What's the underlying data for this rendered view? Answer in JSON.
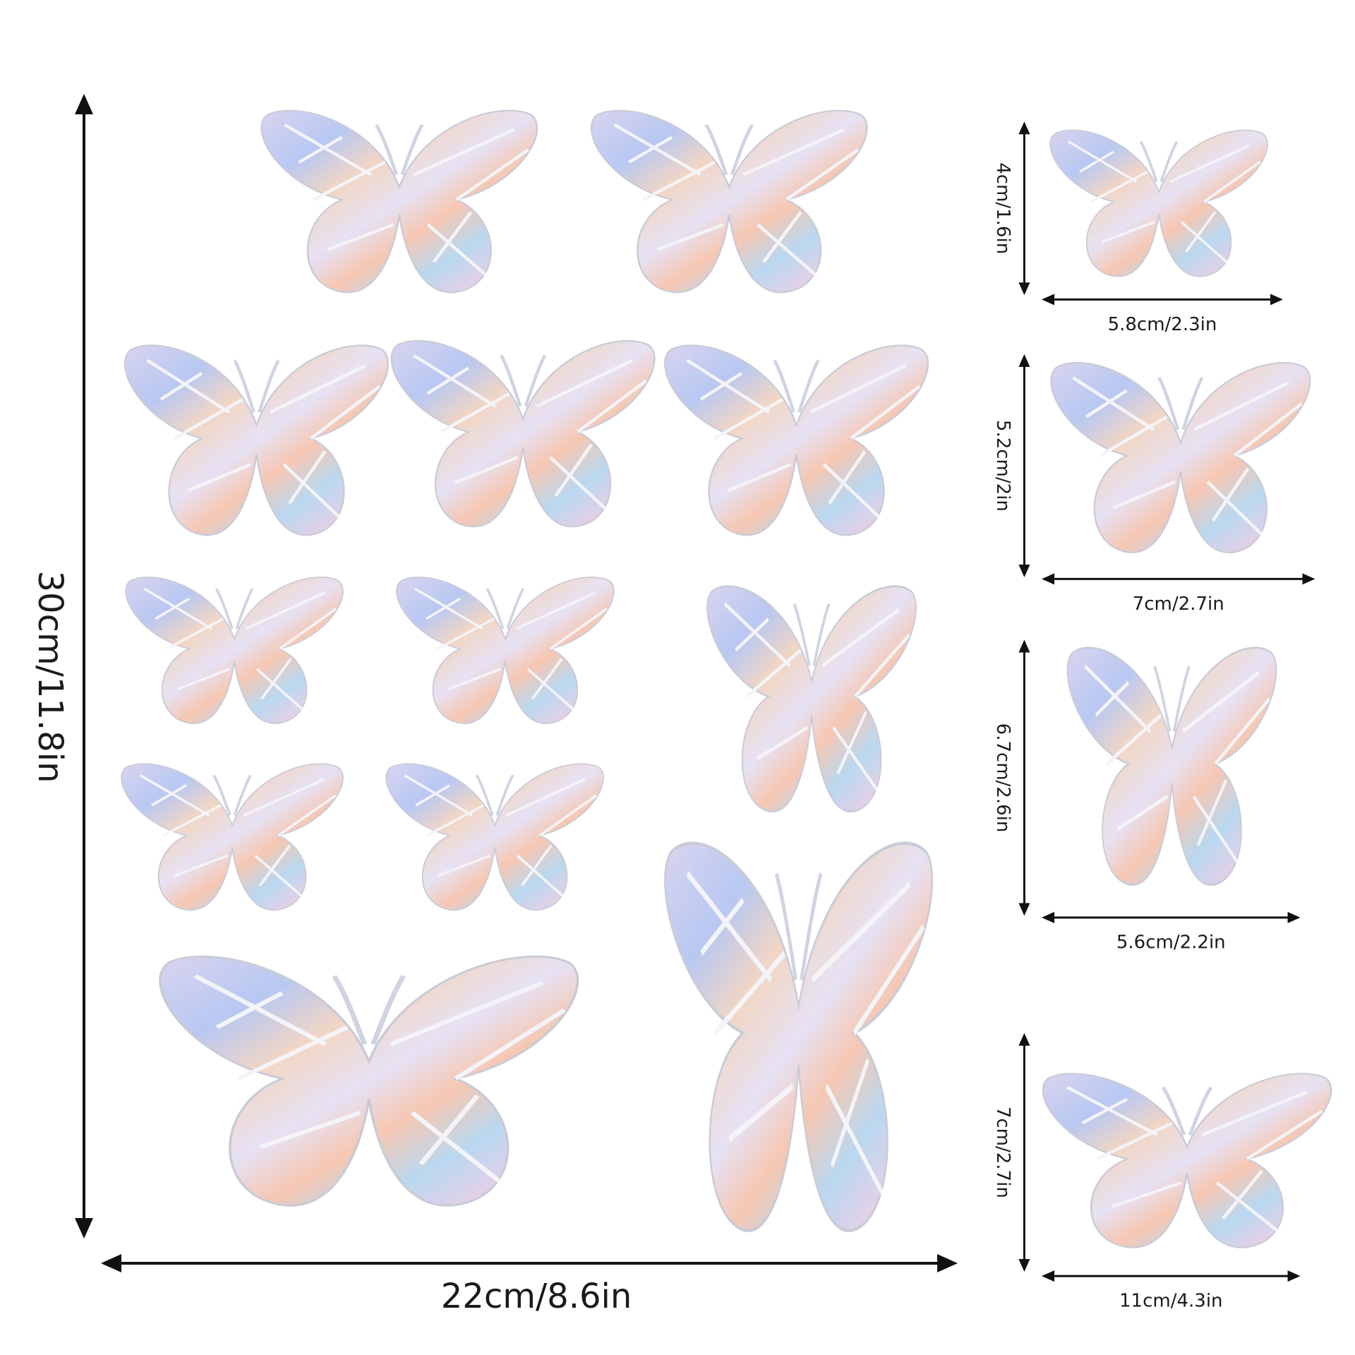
{
  "dimensions": {
    "overall_height": "30cm/11.8in",
    "overall_width": "22cm/8.6in"
  },
  "stickers": [
    {
      "height": "4cm/1.6in",
      "width": "5.8cm/2.3in"
    },
    {
      "height": "5.2cm/2in",
      "width": "7cm/2.7in"
    },
    {
      "height": "6.7cm/2.6in",
      "width": "5.6cm/2.2in"
    },
    {
      "height": "7cm/2.7in",
      "width": "11cm/4.3in"
    }
  ]
}
